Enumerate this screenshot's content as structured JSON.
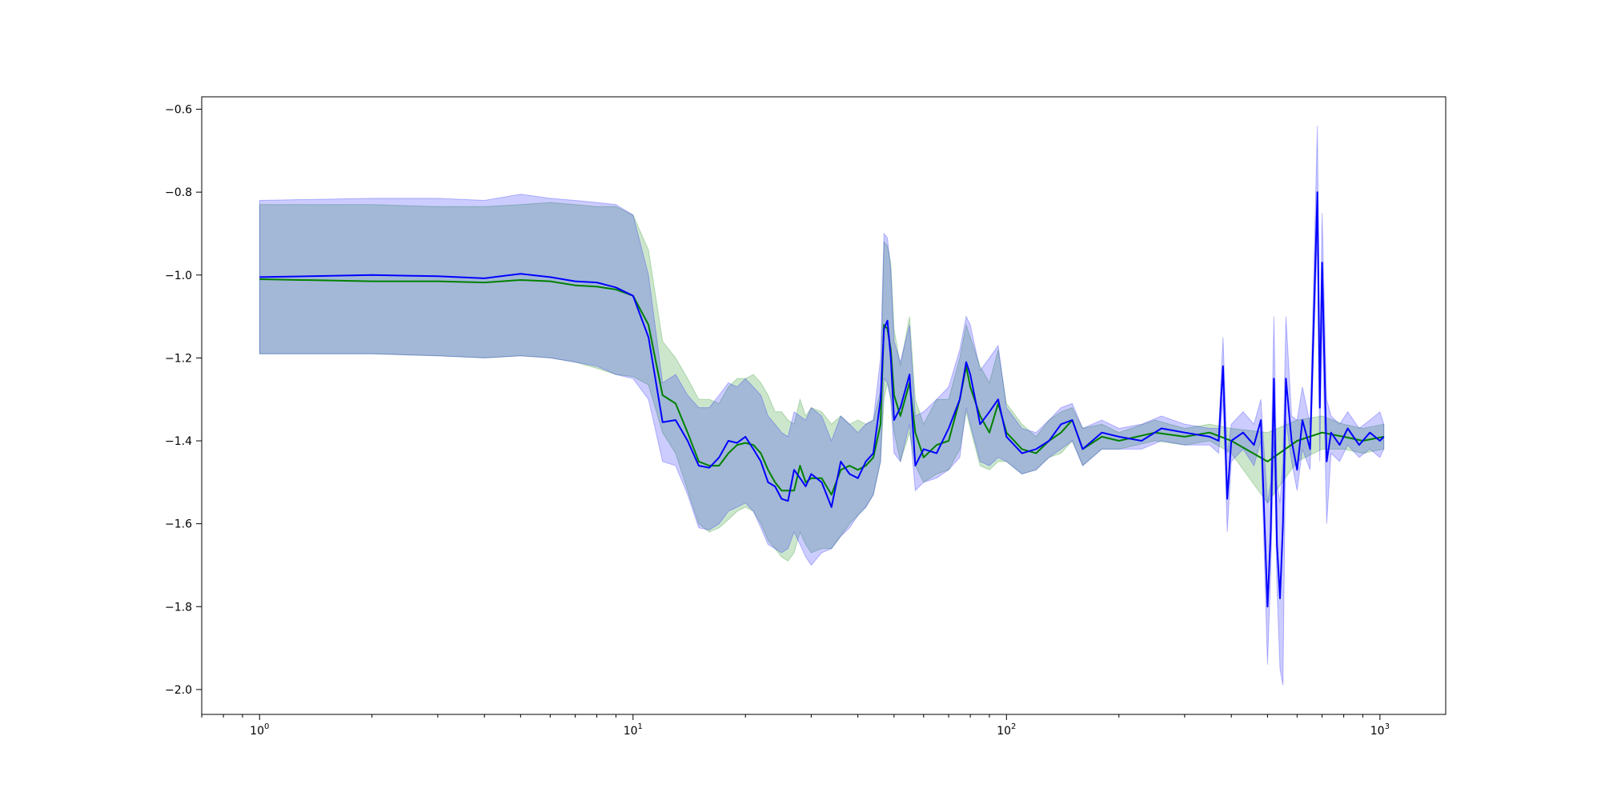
{
  "chart_data": {
    "type": "line",
    "title": "",
    "xlabel": "",
    "ylabel": "",
    "xscale": "log",
    "xlim": [
      0.7,
      1500
    ],
    "ylim": [
      -2.06,
      -0.57
    ],
    "grid": false,
    "legend": "none",
    "x_ticks": [
      {
        "base": "10",
        "exp": "0",
        "value": 1
      },
      {
        "base": "10",
        "exp": "1",
        "value": 10
      },
      {
        "base": "10",
        "exp": "2",
        "value": 100
      },
      {
        "base": "10",
        "exp": "3",
        "value": 1000
      }
    ],
    "y_ticks": [
      {
        "label": "−0.6",
        "value": -0.6
      },
      {
        "label": "−0.8",
        "value": -0.8
      },
      {
        "label": "−1.0",
        "value": -1.0
      },
      {
        "label": "−1.2",
        "value": -1.2
      },
      {
        "label": "−1.4",
        "value": -1.4
      },
      {
        "label": "−1.6",
        "value": -1.6
      },
      {
        "label": "−1.8",
        "value": -1.8
      },
      {
        "label": "−2.0",
        "value": -2.0
      }
    ],
    "series": [
      {
        "color": "#008000",
        "band_color": "#008000",
        "band_opacity": 0.2,
        "points": [
          [
            1,
            -1.01,
            -1.19,
            -0.83
          ],
          [
            2,
            -1.015,
            -1.19,
            -0.83
          ],
          [
            3,
            -1.015,
            -1.195,
            -0.835
          ],
          [
            4,
            -1.018,
            -1.2,
            -0.835
          ],
          [
            5,
            -1.012,
            -1.195,
            -0.83
          ],
          [
            6,
            -1.015,
            -1.2,
            -0.825
          ],
          [
            7,
            -1.025,
            -1.21,
            -0.83
          ],
          [
            8,
            -1.028,
            -1.225,
            -0.835
          ],
          [
            9,
            -1.035,
            -1.24,
            -0.835
          ],
          [
            10,
            -1.05,
            -1.245,
            -0.855
          ],
          [
            11,
            -1.12,
            -1.265,
            -0.94
          ],
          [
            12,
            -1.29,
            -1.38,
            -1.16
          ],
          [
            13,
            -1.31,
            -1.43,
            -1.2
          ],
          [
            14,
            -1.38,
            -1.52,
            -1.25
          ],
          [
            15,
            -1.45,
            -1.6,
            -1.3
          ],
          [
            16,
            -1.46,
            -1.62,
            -1.3
          ],
          [
            17,
            -1.46,
            -1.61,
            -1.31
          ],
          [
            18,
            -1.43,
            -1.59,
            -1.27
          ],
          [
            19,
            -1.41,
            -1.57,
            -1.25
          ],
          [
            20,
            -1.405,
            -1.56,
            -1.25
          ],
          [
            21,
            -1.41,
            -1.57,
            -1.24
          ],
          [
            22,
            -1.43,
            -1.6,
            -1.26
          ],
          [
            23,
            -1.47,
            -1.64,
            -1.29
          ],
          [
            24,
            -1.5,
            -1.66,
            -1.33
          ],
          [
            25,
            -1.52,
            -1.68,
            -1.33
          ],
          [
            26,
            -1.52,
            -1.69,
            -1.35
          ],
          [
            27,
            -1.52,
            -1.67,
            -1.36
          ],
          [
            28,
            -1.46,
            -1.62,
            -1.3
          ],
          [
            29,
            -1.5,
            -1.65,
            -1.34
          ],
          [
            30,
            -1.49,
            -1.67,
            -1.32
          ],
          [
            32,
            -1.49,
            -1.66,
            -1.33
          ],
          [
            34,
            -1.53,
            -1.66,
            -1.36
          ],
          [
            36,
            -1.47,
            -1.63,
            -1.34
          ],
          [
            38,
            -1.46,
            -1.6,
            -1.36
          ],
          [
            40,
            -1.47,
            -1.58,
            -1.35
          ],
          [
            42,
            -1.46,
            -1.56,
            -1.36
          ],
          [
            44,
            -1.44,
            -1.53,
            -1.35
          ],
          [
            46,
            -1.36,
            -1.45,
            -1.28
          ],
          [
            47,
            -1.12,
            -1.3,
            -0.92
          ],
          [
            48,
            -1.13,
            -1.26,
            -0.93
          ],
          [
            49,
            -1.18,
            -1.3,
            -0.97
          ],
          [
            50,
            -1.29,
            -1.38,
            -1.13
          ],
          [
            52,
            -1.34,
            -1.45,
            -1.22
          ],
          [
            55,
            -1.26,
            -1.38,
            -1.1
          ],
          [
            57,
            -1.38,
            -1.46,
            -1.3
          ],
          [
            60,
            -1.44,
            -1.5,
            -1.36
          ],
          [
            65,
            -1.41,
            -1.48,
            -1.3
          ],
          [
            70,
            -1.4,
            -1.47,
            -1.3
          ],
          [
            75,
            -1.3,
            -1.42,
            -1.2
          ],
          [
            78,
            -1.22,
            -1.33,
            -1.12
          ],
          [
            80,
            -1.27,
            -1.37,
            -1.15
          ],
          [
            85,
            -1.34,
            -1.46,
            -1.22
          ],
          [
            90,
            -1.38,
            -1.47,
            -1.26
          ],
          [
            95,
            -1.31,
            -1.45,
            -1.18
          ],
          [
            100,
            -1.38,
            -1.45,
            -1.31
          ],
          [
            110,
            -1.42,
            -1.48,
            -1.36
          ],
          [
            120,
            -1.43,
            -1.47,
            -1.39
          ],
          [
            130,
            -1.4,
            -1.44,
            -1.35
          ],
          [
            140,
            -1.38,
            -1.43,
            -1.33
          ],
          [
            150,
            -1.35,
            -1.4,
            -1.32
          ],
          [
            160,
            -1.42,
            -1.46,
            -1.37
          ],
          [
            180,
            -1.39,
            -1.42,
            -1.36
          ],
          [
            200,
            -1.4,
            -1.42,
            -1.38
          ],
          [
            250,
            -1.38,
            -1.4,
            -1.35
          ],
          [
            300,
            -1.39,
            -1.41,
            -1.37
          ],
          [
            350,
            -1.38,
            -1.4,
            -1.36
          ],
          [
            400,
            -1.4,
            -1.43,
            -1.37
          ],
          [
            500,
            -1.45,
            -1.55,
            -1.38
          ],
          [
            600,
            -1.4,
            -1.45,
            -1.35
          ],
          [
            700,
            -1.38,
            -1.42,
            -1.34
          ],
          [
            800,
            -1.39,
            -1.42,
            -1.36
          ],
          [
            900,
            -1.4,
            -1.43,
            -1.37
          ],
          [
            1024,
            -1.39,
            -1.42,
            -1.36
          ]
        ]
      },
      {
        "color": "#0000ff",
        "band_color": "#0000ff",
        "band_opacity": 0.2,
        "points": [
          [
            1,
            -1.005,
            -1.19,
            -0.82
          ],
          [
            2,
            -1.0,
            -1.19,
            -0.815
          ],
          [
            3,
            -1.003,
            -1.195,
            -0.815
          ],
          [
            4,
            -1.008,
            -1.2,
            -0.82
          ],
          [
            5,
            -0.997,
            -1.195,
            -0.805
          ],
          [
            6,
            -1.005,
            -1.2,
            -0.815
          ],
          [
            7,
            -1.015,
            -1.21,
            -0.82
          ],
          [
            8,
            -1.018,
            -1.22,
            -0.825
          ],
          [
            9,
            -1.03,
            -1.24,
            -0.83
          ],
          [
            10,
            -1.05,
            -1.25,
            -0.855
          ],
          [
            11,
            -1.15,
            -1.3,
            -1.0
          ],
          [
            12,
            -1.355,
            -1.45,
            -1.26
          ],
          [
            13,
            -1.35,
            -1.46,
            -1.24
          ],
          [
            14,
            -1.4,
            -1.53,
            -1.29
          ],
          [
            15,
            -1.46,
            -1.61,
            -1.32
          ],
          [
            16,
            -1.465,
            -1.615,
            -1.32
          ],
          [
            17,
            -1.44,
            -1.6,
            -1.29
          ],
          [
            18,
            -1.4,
            -1.57,
            -1.26
          ],
          [
            19,
            -1.405,
            -1.56,
            -1.27
          ],
          [
            20,
            -1.39,
            -1.55,
            -1.25
          ],
          [
            21,
            -1.42,
            -1.57,
            -1.27
          ],
          [
            22,
            -1.45,
            -1.61,
            -1.29
          ],
          [
            23,
            -1.5,
            -1.65,
            -1.34
          ],
          [
            24,
            -1.51,
            -1.66,
            -1.36
          ],
          [
            25,
            -1.54,
            -1.67,
            -1.38
          ],
          [
            26,
            -1.545,
            -1.66,
            -1.39
          ],
          [
            27,
            -1.47,
            -1.62,
            -1.33
          ],
          [
            28,
            -1.49,
            -1.65,
            -1.34
          ],
          [
            29,
            -1.51,
            -1.68,
            -1.35
          ],
          [
            30,
            -1.48,
            -1.7,
            -1.32
          ],
          [
            32,
            -1.5,
            -1.67,
            -1.34
          ],
          [
            34,
            -1.56,
            -1.66,
            -1.4
          ],
          [
            36,
            -1.45,
            -1.63,
            -1.34
          ],
          [
            38,
            -1.48,
            -1.61,
            -1.36
          ],
          [
            40,
            -1.49,
            -1.58,
            -1.38
          ],
          [
            42,
            -1.45,
            -1.56,
            -1.36
          ],
          [
            44,
            -1.43,
            -1.53,
            -1.35
          ],
          [
            46,
            -1.3,
            -1.45,
            -1.2
          ],
          [
            47,
            -1.13,
            -1.25,
            -0.9
          ],
          [
            48,
            -1.11,
            -1.26,
            -0.91
          ],
          [
            49,
            -1.2,
            -1.3,
            -0.99
          ],
          [
            50,
            -1.35,
            -1.43,
            -1.16
          ],
          [
            52,
            -1.32,
            -1.45,
            -1.21
          ],
          [
            55,
            -1.24,
            -1.36,
            -1.12
          ],
          [
            57,
            -1.46,
            -1.52,
            -1.34
          ],
          [
            60,
            -1.42,
            -1.5,
            -1.33
          ],
          [
            65,
            -1.43,
            -1.49,
            -1.3
          ],
          [
            70,
            -1.37,
            -1.47,
            -1.27
          ],
          [
            75,
            -1.3,
            -1.44,
            -1.18
          ],
          [
            78,
            -1.21,
            -1.32,
            -1.1
          ],
          [
            80,
            -1.24,
            -1.36,
            -1.12
          ],
          [
            85,
            -1.36,
            -1.45,
            -1.23
          ],
          [
            90,
            -1.33,
            -1.46,
            -1.2
          ],
          [
            95,
            -1.3,
            -1.44,
            -1.17
          ],
          [
            100,
            -1.39,
            -1.45,
            -1.32
          ],
          [
            110,
            -1.43,
            -1.48,
            -1.37
          ],
          [
            120,
            -1.42,
            -1.47,
            -1.38
          ],
          [
            130,
            -1.4,
            -1.44,
            -1.35
          ],
          [
            140,
            -1.36,
            -1.42,
            -1.32
          ],
          [
            150,
            -1.35,
            -1.4,
            -1.31
          ],
          [
            160,
            -1.42,
            -1.46,
            -1.37
          ],
          [
            180,
            -1.38,
            -1.42,
            -1.35
          ],
          [
            200,
            -1.39,
            -1.42,
            -1.37
          ],
          [
            230,
            -1.4,
            -1.42,
            -1.36
          ],
          [
            260,
            -1.37,
            -1.4,
            -1.34
          ],
          [
            300,
            -1.38,
            -1.41,
            -1.36
          ],
          [
            350,
            -1.39,
            -1.41,
            -1.37
          ],
          [
            370,
            -1.4,
            -1.43,
            -1.37
          ],
          [
            380,
            -1.22,
            -1.3,
            -1.15
          ],
          [
            390,
            -1.54,
            -1.62,
            -1.43
          ],
          [
            400,
            -1.4,
            -1.45,
            -1.36
          ],
          [
            430,
            -1.38,
            -1.42,
            -1.33
          ],
          [
            460,
            -1.41,
            -1.46,
            -1.36
          ],
          [
            480,
            -1.35,
            -1.4,
            -1.3
          ],
          [
            500,
            -1.8,
            -1.94,
            -1.55
          ],
          [
            510,
            -1.62,
            -1.72,
            -1.5
          ],
          [
            520,
            -1.25,
            -1.4,
            -1.1
          ],
          [
            530,
            -1.65,
            -1.75,
            -1.5
          ],
          [
            540,
            -1.78,
            -1.95,
            -1.55
          ],
          [
            550,
            -1.6,
            -1.99,
            -1.45
          ],
          [
            560,
            -1.25,
            -1.35,
            -1.1
          ],
          [
            580,
            -1.4,
            -1.45,
            -1.34
          ],
          [
            600,
            -1.47,
            -1.52,
            -1.35
          ],
          [
            620,
            -1.35,
            -1.42,
            -1.27
          ],
          [
            650,
            -1.42,
            -1.47,
            -1.36
          ],
          [
            680,
            -0.8,
            -0.9,
            -0.64
          ],
          [
            690,
            -1.32,
            -1.45,
            -1.2
          ],
          [
            700,
            -0.97,
            -1.1,
            -0.85
          ],
          [
            720,
            -1.45,
            -1.6,
            -1.3
          ],
          [
            740,
            -1.38,
            -1.43,
            -1.34
          ],
          [
            780,
            -1.41,
            -1.45,
            -1.36
          ],
          [
            820,
            -1.37,
            -1.41,
            -1.33
          ],
          [
            880,
            -1.41,
            -1.44,
            -1.37
          ],
          [
            940,
            -1.38,
            -1.42,
            -1.35
          ],
          [
            1000,
            -1.4,
            -1.44,
            -1.33
          ],
          [
            1024,
            -1.39,
            -1.42,
            -1.36
          ]
        ]
      }
    ]
  }
}
